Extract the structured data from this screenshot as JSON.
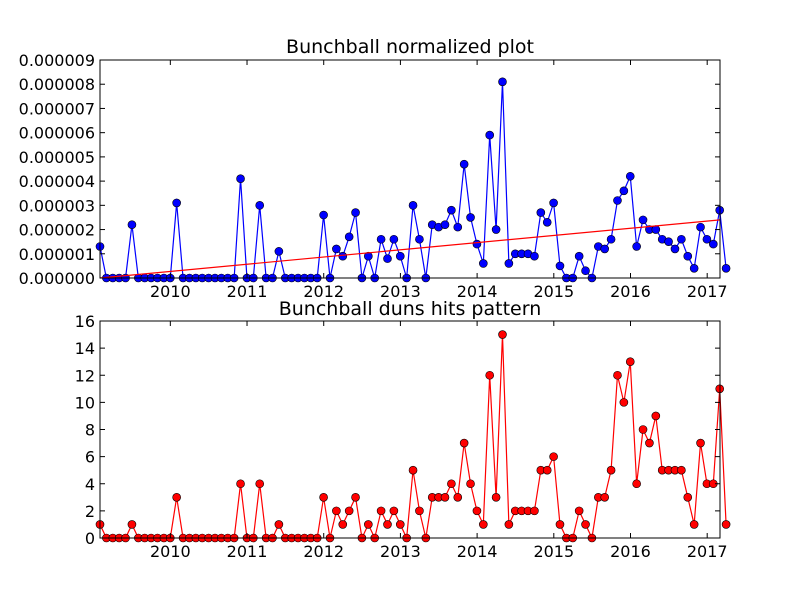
{
  "chart_data": [
    {
      "type": "line",
      "title": "Bunchball normalized plot",
      "xlim": [
        2009.083,
        2017.167
      ],
      "ylim": [
        0,
        9e-06
      ],
      "x_ticks": [
        2010,
        2011,
        2012,
        2013,
        2014,
        2015,
        2016,
        2017
      ],
      "x_tick_labels": [
        "2010",
        "2011",
        "2012",
        "2013",
        "2014",
        "2015",
        "2016",
        "2017"
      ],
      "y_ticks": [
        0,
        1e-06,
        2e-06,
        3e-06,
        4e-06,
        5e-06,
        6e-06,
        7e-06,
        8e-06,
        9e-06
      ],
      "y_tick_labels": [
        "0.000000",
        "0.000001",
        "0.000002",
        "0.000003",
        "0.000004",
        "0.000005",
        "0.000006",
        "0.000007",
        "0.000008",
        "0.000009"
      ],
      "grid": false,
      "series": [
        {
          "color": "#0000ff",
          "marker": "circle",
          "start_year": 2009.083,
          "step": 0.0833,
          "values": [
            1.3e-06,
            0,
            0,
            0,
            0,
            2.2e-06,
            0,
            0,
            0,
            0,
            0,
            0,
            3.1e-06,
            0,
            0,
            0,
            0,
            0,
            0,
            0,
            0,
            0,
            4.1e-06,
            0,
            0,
            3e-06,
            0,
            0,
            1.1e-06,
            0,
            0,
            0,
            0,
            0,
            0,
            2.6e-06,
            0,
            1.2e-06,
            9e-07,
            1.7e-06,
            2.7e-06,
            0,
            9e-07,
            0,
            1.6e-06,
            8e-07,
            1.6e-06,
            9e-07,
            0,
            3e-06,
            1.6e-06,
            0,
            2.2e-06,
            2.1e-06,
            2.2e-06,
            2.8e-06,
            2.1e-06,
            4.7e-06,
            2.5e-06,
            1.4e-06,
            6e-07,
            5.9e-06,
            2e-06,
            8.1e-06,
            6e-07,
            1e-06,
            1e-06,
            1e-06,
            9e-07,
            2.7e-06,
            2.3e-06,
            3.1e-06,
            5e-07,
            0,
            0,
            9e-07,
            3e-07,
            0,
            1.3e-06,
            1.2e-06,
            1.6e-06,
            3.2e-06,
            3.6e-06,
            4.2e-06,
            1.3e-06,
            2.4e-06,
            2e-06,
            2e-06,
            1.6e-06,
            1.5e-06,
            1.2e-06,
            1.6e-06,
            9e-07,
            4e-07,
            2.1e-06,
            1.6e-06,
            1.4e-06,
            2.8e-06,
            4e-07
          ]
        }
      ],
      "trendline": {
        "color": "#ff0000",
        "from": [
          2009.083,
          0
        ],
        "to": [
          2017.167,
          2.4e-06
        ]
      }
    },
    {
      "type": "line",
      "title": "Bunchball duns hits pattern",
      "xlim": [
        2009.083,
        2017.167
      ],
      "ylim": [
        0,
        16
      ],
      "x_ticks": [
        2010,
        2011,
        2012,
        2013,
        2014,
        2015,
        2016,
        2017
      ],
      "x_tick_labels": [
        "2010",
        "2011",
        "2012",
        "2013",
        "2014",
        "2015",
        "2016",
        "2017"
      ],
      "y_ticks": [
        0,
        2,
        4,
        6,
        8,
        10,
        12,
        14,
        16
      ],
      "y_tick_labels": [
        "0",
        "2",
        "4",
        "6",
        "8",
        "10",
        "12",
        "14",
        "16"
      ],
      "grid": false,
      "series": [
        {
          "color": "#ff0000",
          "marker": "circle",
          "start_year": 2009.083,
          "step": 0.0833,
          "values": [
            1,
            0,
            0,
            0,
            0,
            1,
            0,
            0,
            0,
            0,
            0,
            0,
            3,
            0,
            0,
            0,
            0,
            0,
            0,
            0,
            0,
            0,
            4,
            0,
            0,
            4,
            0,
            0,
            1,
            0,
            0,
            0,
            0,
            0,
            0,
            3,
            0,
            2,
            1,
            2,
            3,
            0,
            1,
            0,
            2,
            1,
            2,
            1,
            0,
            5,
            2,
            0,
            3,
            3,
            3,
            4,
            3,
            7,
            4,
            2,
            1,
            12,
            3,
            15,
            1,
            2,
            2,
            2,
            2,
            5,
            5,
            6,
            1,
            0,
            0,
            2,
            1,
            0,
            3,
            3,
            5,
            12,
            10,
            13,
            4,
            8,
            7,
            9,
            5,
            5,
            5,
            5,
            3,
            1,
            7,
            4,
            4,
            11,
            1
          ]
        }
      ]
    }
  ]
}
